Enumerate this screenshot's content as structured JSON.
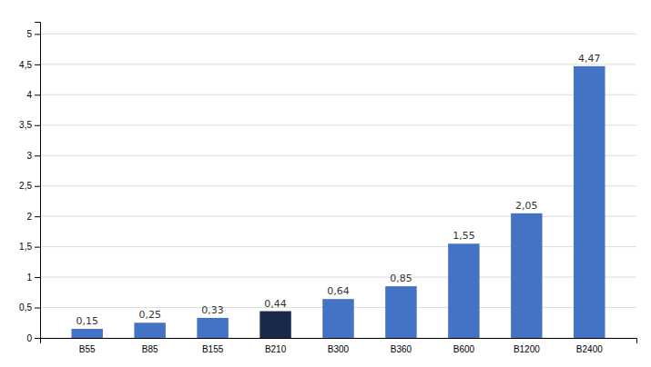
{
  "chart_data": {
    "type": "bar",
    "categories": [
      "B55",
      "B85",
      "B155",
      "B210",
      "B300",
      "B360",
      "B600",
      "B1200",
      "B2400"
    ],
    "values": [
      0.15,
      0.25,
      0.33,
      0.44,
      0.64,
      0.85,
      1.55,
      2.05,
      4.47
    ],
    "value_labels": [
      "0,15",
      "0,25",
      "0,33",
      "0,44",
      "0,64",
      "0,85",
      "1,55",
      "2,05",
      "4,47"
    ],
    "colors": [
      "#4472C4",
      "#4472C4",
      "#4472C4",
      "#1A2A4A",
      "#4472C4",
      "#4472C4",
      "#4472C4",
      "#4472C4",
      "#4472C4"
    ],
    "ylim": [
      0,
      5.2
    ],
    "yticks": [
      0,
      {
        "value": 0.5,
        "label": "0,5"
      },
      1,
      {
        "value": 1.5,
        "label": "1,5"
      },
      2,
      {
        "value": 2.5,
        "label": "2,5"
      },
      3,
      {
        "value": 3.5,
        "label": "3,5"
      },
      4,
      {
        "value": 4.5,
        "label": "4,5"
      },
      5
    ],
    "grid": true,
    "data_labels": true
  }
}
